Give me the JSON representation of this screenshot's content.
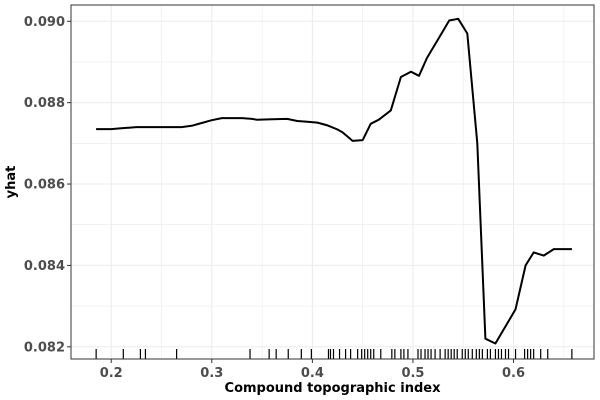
{
  "chart_data": {
    "type": "line",
    "xlabel": "Compound topographic index",
    "ylabel": "yhat",
    "xlim": [
      0.16,
      0.68
    ],
    "ylim": [
      0.0817,
      0.0904
    ],
    "x_ticks": [
      0.2,
      0.3,
      0.4,
      0.5,
      0.6
    ],
    "x_tick_labels": [
      "0.2",
      "0.3",
      "0.4",
      "0.5",
      "0.6"
    ],
    "y_ticks": [
      0.082,
      0.084,
      0.086,
      0.088,
      0.09
    ],
    "y_tick_labels": [
      "0.082",
      "0.084",
      "0.086",
      "0.088",
      "0.090"
    ],
    "grid": true,
    "colors": {
      "line": "#000000",
      "grid": "#ebebeb",
      "panel_border": "#333333",
      "background": "#ffffff"
    },
    "series": [
      {
        "x": [
          0.185,
          0.2,
          0.21,
          0.225,
          0.24,
          0.255,
          0.27,
          0.28,
          0.29,
          0.3,
          0.31,
          0.32,
          0.33,
          0.34,
          0.345,
          0.36,
          0.375,
          0.385,
          0.395,
          0.405,
          0.415,
          0.425,
          0.43,
          0.44,
          0.45,
          0.458,
          0.466,
          0.478,
          0.488,
          0.498,
          0.506,
          0.514,
          0.526,
          0.536,
          0.545,
          0.554,
          0.564,
          0.572,
          0.582,
          0.592,
          0.602,
          0.612,
          0.62,
          0.63,
          0.64,
          0.658
        ],
        "y": [
          0.08735,
          0.08735,
          0.08737,
          0.0874,
          0.0874,
          0.0874,
          0.0874,
          0.08743,
          0.0875,
          0.08757,
          0.08762,
          0.08762,
          0.08762,
          0.0876,
          0.08758,
          0.08759,
          0.0876,
          0.08755,
          0.08753,
          0.08751,
          0.08744,
          0.08734,
          0.08727,
          0.08706,
          0.08708,
          0.08748,
          0.08758,
          0.08781,
          0.08863,
          0.08876,
          0.08866,
          0.0891,
          0.0896,
          0.09002,
          0.09006,
          0.0897,
          0.087,
          0.0822,
          0.08208,
          0.0825,
          0.08292,
          0.084,
          0.08432,
          0.08424,
          0.0844,
          0.0844
        ]
      }
    ],
    "rug_x": [
      0.185,
      0.212,
      0.229,
      0.234,
      0.265,
      0.338,
      0.357,
      0.364,
      0.376,
      0.389,
      0.399,
      0.416,
      0.418,
      0.421,
      0.427,
      0.433,
      0.438,
      0.445,
      0.449,
      0.452,
      0.455,
      0.458,
      0.461,
      0.468,
      0.479,
      0.482,
      0.488,
      0.491,
      0.495,
      0.505,
      0.508,
      0.512,
      0.515,
      0.518,
      0.522,
      0.527,
      0.532,
      0.535,
      0.538,
      0.541,
      0.544,
      0.549,
      0.552,
      0.555,
      0.559,
      0.563,
      0.566,
      0.569,
      0.574,
      0.577,
      0.582,
      0.585,
      0.588,
      0.592,
      0.595,
      0.602,
      0.611,
      0.614,
      0.617,
      0.62,
      0.627,
      0.634,
      0.658
    ]
  }
}
